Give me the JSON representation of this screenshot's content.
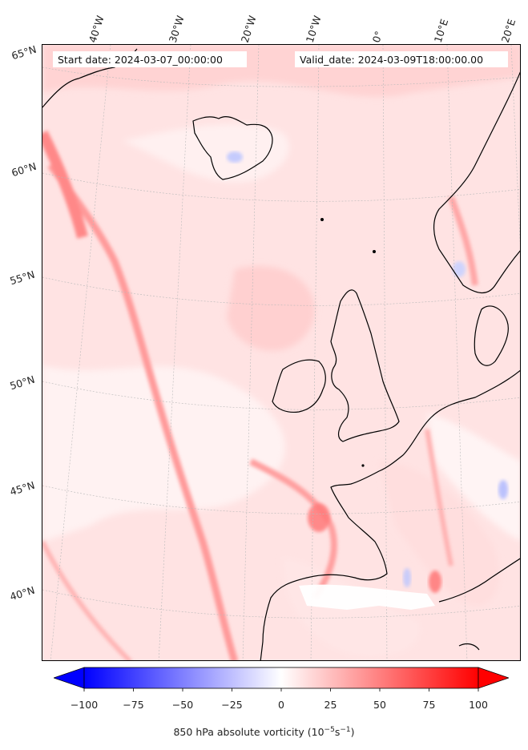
{
  "header": {
    "start_date": "Start date: 2024-03-07_00:00:00",
    "valid_date": "Valid_date: 2024-03-09T18:00:00.00"
  },
  "lon_labels": [
    "40°W",
    "30°W",
    "20°W",
    "10°W",
    "0°",
    "10°E",
    "20°E"
  ],
  "lat_labels": [
    "65°N",
    "60°N",
    "55°N",
    "50°N",
    "45°N",
    "40°N"
  ],
  "colorbar": {
    "min": -100,
    "max": 100,
    "ticks": [
      "−100",
      "−75",
      "−50",
      "−25",
      "0",
      "25",
      "50",
      "75",
      "100"
    ],
    "title_main": "850 hPa absolute vorticity (10",
    "title_sup1": "−5",
    "title_mid": "s",
    "title_sup2": "−1",
    "title_end": ")",
    "color_low": "#0000ff",
    "color_mid": "#ffffff",
    "color_high": "#ff0000",
    "extend": "both"
  },
  "map": {
    "projection": "Lambert conformal",
    "extent_desc": "North Atlantic and western Europe",
    "background_color": "#ffeaea",
    "coastline_color": "#000000"
  }
}
